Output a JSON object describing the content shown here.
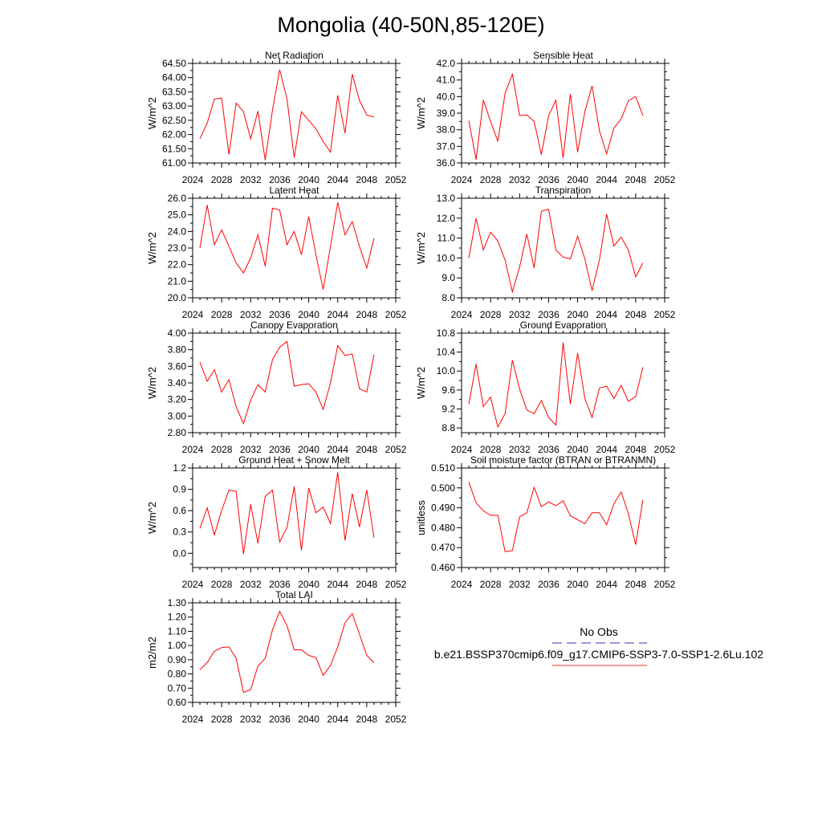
{
  "figure": {
    "title": "Mongolia (40-50N,85-120E)"
  },
  "legend": {
    "entries": [
      {
        "label": "No Obs",
        "line_color": "#3333aa",
        "line_style": "dashed"
      },
      {
        "label": "b.e21.BSSP370cmip6.f09_g17.CMIP6-SSP3-7.0-SSP1-2.6Lu.102",
        "line_color": "#ee3333",
        "line_style": "solid"
      }
    ]
  },
  "colors": {
    "series": "#ff0000",
    "axis": "#000000"
  },
  "chart_data": [
    {
      "type": "line",
      "title": "Net Radiation",
      "ylabel": "W/m^2",
      "xlim": [
        2024,
        2052
      ],
      "xticks": [
        "2024",
        "2028",
        "2032",
        "2036",
        "2040",
        "2044",
        "2048",
        "2052"
      ],
      "ylim": [
        61.0,
        64.5
      ],
      "yticks": [
        "61.00",
        "61.50",
        "62.00",
        "62.50",
        "63.00",
        "63.50",
        "64.00",
        "64.50"
      ],
      "x": [
        2025,
        2026,
        2027,
        2028,
        2029,
        2030,
        2031,
        2032,
        2033,
        2034,
        2035,
        2036,
        2037,
        2038,
        2039,
        2040,
        2041,
        2042,
        2043,
        2044,
        2045,
        2046,
        2047,
        2048,
        2049
      ],
      "values": [
        61.85,
        62.4,
        63.25,
        63.28,
        61.3,
        63.1,
        62.8,
        61.85,
        62.82,
        61.1,
        62.85,
        64.28,
        63.25,
        61.18,
        62.8,
        62.5,
        62.2,
        61.75,
        61.38,
        63.38,
        62.05,
        64.12,
        63.2,
        62.68,
        62.62
      ]
    },
    {
      "type": "line",
      "title": "Sensible Heat",
      "ylabel": "W/m^2",
      "xlim": [
        2024,
        2052
      ],
      "xticks": [
        "2024",
        "2028",
        "2032",
        "2036",
        "2040",
        "2044",
        "2048",
        "2052"
      ],
      "ylim": [
        36.0,
        42.0
      ],
      "yticks": [
        "36.0",
        "37.0",
        "38.0",
        "39.0",
        "40.0",
        "41.0",
        "42.0"
      ],
      "x": [
        2025,
        2026,
        2027,
        2028,
        2029,
        2030,
        2031,
        2032,
        2033,
        2034,
        2035,
        2036,
        2037,
        2038,
        2039,
        2040,
        2041,
        2042,
        2043,
        2044,
        2045,
        2046,
        2047,
        2048,
        2049
      ],
      "values": [
        38.55,
        36.2,
        39.8,
        38.5,
        37.3,
        40.2,
        41.35,
        38.85,
        38.9,
        38.5,
        36.5,
        38.85,
        39.78,
        36.3,
        40.15,
        36.65,
        39.1,
        40.65,
        37.95,
        36.55,
        38.1,
        38.65,
        39.75,
        40.0,
        38.85
      ]
    },
    {
      "type": "line",
      "title": "Latent Heat",
      "ylabel": "W/m^2",
      "xlim": [
        2024,
        2052
      ],
      "xticks": [
        "2024",
        "2028",
        "2032",
        "2036",
        "2040",
        "2044",
        "2048",
        "2052"
      ],
      "ylim": [
        20.0,
        26.0
      ],
      "yticks": [
        "20.0",
        "21.0",
        "22.0",
        "23.0",
        "24.0",
        "25.0",
        "26.0"
      ],
      "x": [
        2025,
        2026,
        2027,
        2028,
        2029,
        2030,
        2031,
        2032,
        2033,
        2034,
        2035,
        2036,
        2037,
        2038,
        2039,
        2040,
        2041,
        2042,
        2043,
        2044,
        2045,
        2046,
        2047,
        2048,
        2049
      ],
      "values": [
        23.0,
        25.6,
        23.2,
        24.1,
        23.1,
        22.1,
        21.5,
        22.4,
        23.8,
        21.9,
        25.4,
        25.3,
        23.2,
        24.0,
        22.6,
        24.9,
        22.6,
        20.5,
        23.1,
        25.75,
        23.8,
        24.6,
        23.1,
        21.8,
        23.6
      ]
    },
    {
      "type": "line",
      "title": "Transpiration",
      "ylabel": "W/m^2",
      "xlim": [
        2024,
        2052
      ],
      "xticks": [
        "2024",
        "2028",
        "2032",
        "2036",
        "2040",
        "2044",
        "2048",
        "2052"
      ],
      "ylim": [
        8.0,
        13.0
      ],
      "yticks": [
        "8.0",
        "9.0",
        "10.0",
        "11.0",
        "12.0",
        "13.0"
      ],
      "x": [
        2025,
        2026,
        2027,
        2028,
        2029,
        2030,
        2031,
        2032,
        2033,
        2034,
        2035,
        2036,
        2037,
        2038,
        2039,
        2040,
        2041,
        2042,
        2043,
        2044,
        2045,
        2046,
        2047,
        2048,
        2049
      ],
      "values": [
        10.0,
        12.0,
        10.4,
        11.3,
        10.85,
        9.9,
        8.3,
        9.55,
        11.2,
        9.5,
        12.35,
        12.45,
        10.4,
        10.05,
        9.95,
        11.1,
        9.95,
        8.35,
        9.9,
        12.2,
        10.6,
        11.05,
        10.4,
        9.05,
        9.75
      ]
    },
    {
      "type": "line",
      "title": "Canopy Evaporation",
      "ylabel": "W/m^2",
      "xlim": [
        2024,
        2052
      ],
      "xticks": [
        "2024",
        "2028",
        "2032",
        "2036",
        "2040",
        "2044",
        "2048",
        "2052"
      ],
      "ylim": [
        2.8,
        4.0
      ],
      "yticks": [
        "2.80",
        "3.00",
        "3.20",
        "3.40",
        "3.60",
        "3.80",
        "4.00"
      ],
      "x": [
        2025,
        2026,
        2027,
        2028,
        2029,
        2030,
        2031,
        2032,
        2033,
        2034,
        2035,
        2036,
        2037,
        2038,
        2039,
        2040,
        2041,
        2042,
        2043,
        2044,
        2045,
        2046,
        2047,
        2048,
        2049
      ],
      "values": [
        3.65,
        3.42,
        3.56,
        3.29,
        3.44,
        3.11,
        2.91,
        3.19,
        3.38,
        3.29,
        3.68,
        3.83,
        3.9,
        3.36,
        3.38,
        3.39,
        3.29,
        3.08,
        3.4,
        3.85,
        3.73,
        3.75,
        3.33,
        3.29,
        3.74
      ]
    },
    {
      "type": "line",
      "title": "Ground Evaporation",
      "ylabel": "W/m^2",
      "xlim": [
        2024,
        2052
      ],
      "xticks": [
        "2024",
        "2028",
        "2032",
        "2036",
        "2040",
        "2044",
        "2048",
        "2052"
      ],
      "ylim": [
        8.7,
        10.8
      ],
      "yticks": [
        "8.8",
        "9.2",
        "9.6",
        "10.0",
        "10.4",
        "10.8"
      ],
      "x": [
        2025,
        2026,
        2027,
        2028,
        2029,
        2030,
        2031,
        2032,
        2033,
        2034,
        2035,
        2036,
        2037,
        2038,
        2039,
        2040,
        2041,
        2042,
        2043,
        2044,
        2045,
        2046,
        2047,
        2048,
        2049
      ],
      "values": [
        9.3,
        10.15,
        9.25,
        9.45,
        8.82,
        9.1,
        10.23,
        9.62,
        9.18,
        9.1,
        9.38,
        9.02,
        8.86,
        10.6,
        9.3,
        10.38,
        9.42,
        9.02,
        9.64,
        9.68,
        9.42,
        9.7,
        9.36,
        9.46,
        10.08
      ]
    },
    {
      "type": "line",
      "title": "Ground Heat + Snow Melt",
      "ylabel": "W/m^2",
      "xlim": [
        2024,
        2052
      ],
      "xticks": [
        "2024",
        "2028",
        "2032",
        "2036",
        "2040",
        "2044",
        "2048",
        "2052"
      ],
      "ylim": [
        -0.2,
        1.2
      ],
      "yticks": [
        "0.0",
        "0.3",
        "0.6",
        "0.9",
        "1.2"
      ],
      "x": [
        2025,
        2026,
        2027,
        2028,
        2029,
        2030,
        2031,
        2032,
        2033,
        2034,
        2035,
        2036,
        2037,
        2038,
        2039,
        2040,
        2041,
        2042,
        2043,
        2044,
        2045,
        2046,
        2047,
        2048,
        2049
      ],
      "values": [
        0.35,
        0.64,
        0.26,
        0.6,
        0.89,
        0.87,
        -0.01,
        0.69,
        0.14,
        0.8,
        0.89,
        0.16,
        0.36,
        0.94,
        0.04,
        0.92,
        0.57,
        0.65,
        0.42,
        1.14,
        0.18,
        0.84,
        0.37,
        0.89,
        0.22
      ]
    },
    {
      "type": "line",
      "title": "Soil moisture factor (BTRAN or BTRANMN)",
      "ylabel": "unitless",
      "xlim": [
        2024,
        2052
      ],
      "xticks": [
        "2024",
        "2028",
        "2032",
        "2036",
        "2040",
        "2044",
        "2048",
        "2052"
      ],
      "ylim": [
        0.46,
        0.51
      ],
      "yticks": [
        "0.460",
        "0.470",
        "0.480",
        "0.490",
        "0.500",
        "0.510"
      ],
      "x": [
        2025,
        2026,
        2027,
        2028,
        2029,
        2030,
        2031,
        2032,
        2033,
        2034,
        2035,
        2036,
        2037,
        2038,
        2039,
        2040,
        2041,
        2042,
        2043,
        2044,
        2045,
        2046,
        2047,
        2048,
        2049
      ],
      "values": [
        0.503,
        0.4925,
        0.4885,
        0.4862,
        0.4862,
        0.468,
        0.4685,
        0.4855,
        0.4875,
        0.5003,
        0.4905,
        0.493,
        0.491,
        0.4935,
        0.486,
        0.484,
        0.482,
        0.4875,
        0.4875,
        0.4815,
        0.492,
        0.498,
        0.487,
        0.4715,
        0.494
      ]
    },
    {
      "type": "line",
      "title": "Total LAI",
      "ylabel": "m2/m2",
      "xlim": [
        2024,
        2052
      ],
      "xticks": [
        "2024",
        "2028",
        "2032",
        "2036",
        "2040",
        "2044",
        "2048",
        "2052"
      ],
      "ylim": [
        0.6,
        1.3
      ],
      "yticks": [
        "0.60",
        "0.70",
        "0.80",
        "0.90",
        "1.00",
        "1.10",
        "1.20",
        "1.30"
      ],
      "x": [
        2025,
        2026,
        2027,
        2028,
        2029,
        2030,
        2031,
        2032,
        2033,
        2034,
        2035,
        2036,
        2037,
        2038,
        2039,
        2040,
        2041,
        2042,
        2043,
        2044,
        2045,
        2046,
        2047,
        2048,
        2049
      ],
      "values": [
        0.83,
        0.88,
        0.96,
        0.985,
        0.99,
        0.91,
        0.67,
        0.69,
        0.855,
        0.91,
        1.11,
        1.24,
        1.14,
        0.97,
        0.97,
        0.93,
        0.915,
        0.79,
        0.86,
        0.99,
        1.16,
        1.225,
        1.08,
        0.93,
        0.88
      ]
    }
  ]
}
